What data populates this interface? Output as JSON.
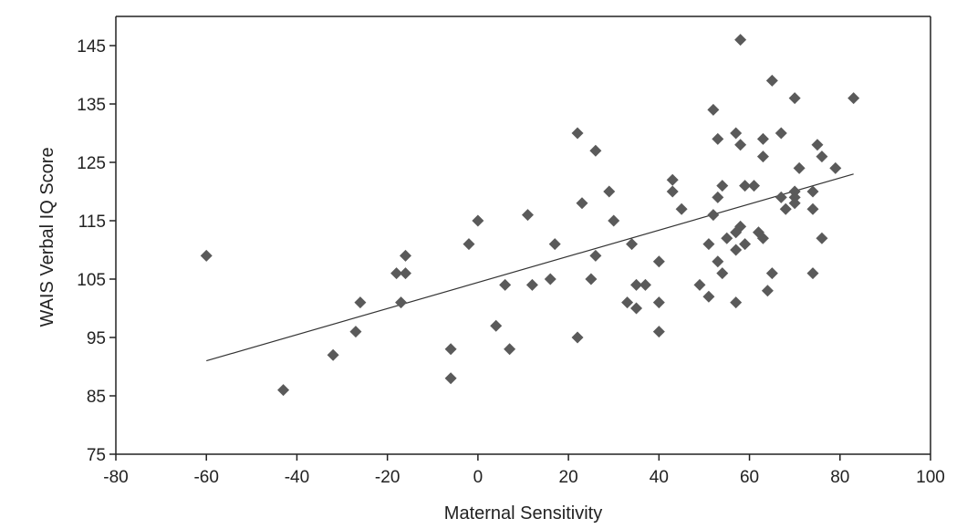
{
  "chart_data": {
    "type": "scatter",
    "title": "",
    "xlabel": "Maternal Sensitivity",
    "ylabel": "WAIS Verbal IQ Score",
    "xlim": [
      -80,
      100
    ],
    "ylim": [
      75,
      150
    ],
    "x_ticks": [
      "-80",
      "-60",
      "-40",
      "-20",
      "0",
      "20",
      "40",
      "60",
      "80",
      "100"
    ],
    "y_ticks": [
      "145",
      "135",
      "125",
      "115",
      "105",
      "95",
      "85",
      "75"
    ],
    "grid": false,
    "legend": "none",
    "colors": {
      "marker": "#5a5a5a",
      "line": "#333333",
      "axis": "#222222"
    },
    "points": [
      [
        -60,
        109
      ],
      [
        -43,
        86
      ],
      [
        -32,
        92
      ],
      [
        -27,
        96
      ],
      [
        -26,
        101
      ],
      [
        -18,
        106
      ],
      [
        -17,
        101
      ],
      [
        -16,
        109
      ],
      [
        -16,
        106
      ],
      [
        -6,
        93
      ],
      [
        -6,
        88
      ],
      [
        -2,
        111
      ],
      [
        0,
        115
      ],
      [
        4,
        97
      ],
      [
        6,
        104
      ],
      [
        7,
        93
      ],
      [
        11,
        116
      ],
      [
        12,
        104
      ],
      [
        16,
        105
      ],
      [
        17,
        111
      ],
      [
        22,
        130
      ],
      [
        22,
        95
      ],
      [
        23,
        118
      ],
      [
        25,
        105
      ],
      [
        26,
        127
      ],
      [
        26,
        109
      ],
      [
        29,
        120
      ],
      [
        30,
        115
      ],
      [
        33,
        101
      ],
      [
        34,
        111
      ],
      [
        35,
        100
      ],
      [
        35,
        104
      ],
      [
        37,
        104
      ],
      [
        40,
        108
      ],
      [
        40,
        101
      ],
      [
        40,
        96
      ],
      [
        43,
        122
      ],
      [
        43,
        120
      ],
      [
        45,
        117
      ],
      [
        49,
        104
      ],
      [
        51,
        111
      ],
      [
        51,
        102
      ],
      [
        52,
        134
      ],
      [
        52,
        116
      ],
      [
        53,
        129
      ],
      [
        53,
        119
      ],
      [
        53,
        108
      ],
      [
        54,
        121
      ],
      [
        54,
        106
      ],
      [
        55,
        112
      ],
      [
        57,
        130
      ],
      [
        57,
        113
      ],
      [
        57,
        110
      ],
      [
        57,
        101
      ],
      [
        58,
        146
      ],
      [
        58,
        128
      ],
      [
        58,
        114
      ],
      [
        59,
        121
      ],
      [
        59,
        111
      ],
      [
        61,
        121
      ],
      [
        62,
        113
      ],
      [
        63,
        129
      ],
      [
        63,
        126
      ],
      [
        63,
        112
      ],
      [
        64,
        103
      ],
      [
        65,
        139
      ],
      [
        65,
        106
      ],
      [
        67,
        130
      ],
      [
        67,
        119
      ],
      [
        68,
        117
      ],
      [
        70,
        136
      ],
      [
        70,
        120
      ],
      [
        70,
        119
      ],
      [
        70,
        118
      ],
      [
        71,
        124
      ],
      [
        74,
        120
      ],
      [
        74,
        117
      ],
      [
        74,
        106
      ],
      [
        75,
        128
      ],
      [
        76,
        126
      ],
      [
        76,
        112
      ],
      [
        79,
        124
      ],
      [
        83,
        136
      ]
    ],
    "trendline": {
      "x": [
        -60,
        83
      ],
      "y": [
        91,
        123
      ]
    }
  }
}
